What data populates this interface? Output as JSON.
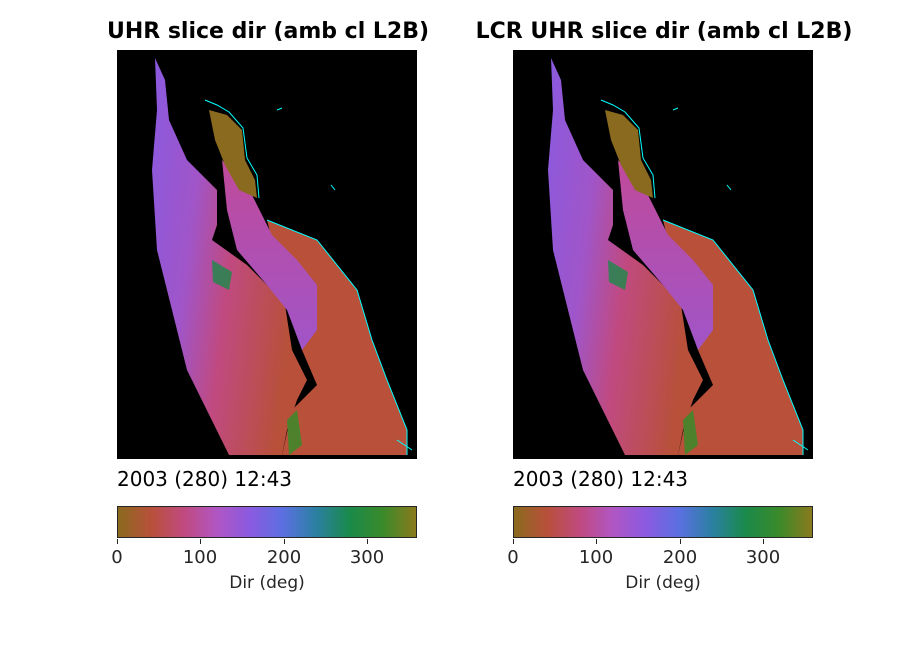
{
  "figure": {
    "panels": [
      {
        "title": "UHR slice dir (amb cl L2B)",
        "timestamp": "2003 (280) 12:43",
        "colorbar": {
          "label": "Dir (deg)",
          "ticks": [
            "0",
            "100",
            "200",
            "300"
          ]
        }
      },
      {
        "title": "LCR UHR slice dir (amb cl L2B)",
        "timestamp": "2003 (280) 12:43",
        "colorbar": {
          "label": "Dir (deg)",
          "ticks": [
            "0",
            "100",
            "200",
            "300"
          ]
        }
      }
    ]
  },
  "chart_data": {
    "type": "heatmap",
    "variable": "wind direction (image map, no discrete points)",
    "colorbar_range": [
      0,
      360
    ],
    "colorbar_ticks": [
      0,
      100,
      200,
      300
    ],
    "colormap": [
      "#8a6a1e",
      "#b8503a",
      "#c04a80",
      "#b056c4",
      "#8a5ae0",
      "#5a70e0",
      "#2a80a0",
      "#1a8a4a",
      "#3a8a2a",
      "#8a7a1e"
    ],
    "land_color": "#000000",
    "coastline_color": "#00ffff"
  }
}
